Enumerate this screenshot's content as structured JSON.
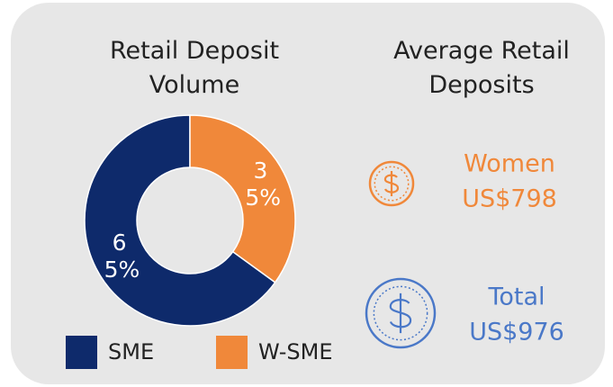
{
  "chart_data": {
    "type": "pie",
    "title": "Retail Deposit Volume",
    "categories": [
      "SME",
      "W-SME"
    ],
    "values": [
      65,
      35
    ],
    "value_labels": [
      "65%",
      "35%"
    ],
    "colors": [
      "#0e2a6b",
      "#f0883a"
    ]
  },
  "deposits": {
    "title": "Average Retail Deposits",
    "items": [
      {
        "label": "Women",
        "value": "US$798",
        "color": "#f0883a"
      },
      {
        "label": "Total",
        "value": "US$976",
        "color": "#4a78c8"
      }
    ]
  }
}
